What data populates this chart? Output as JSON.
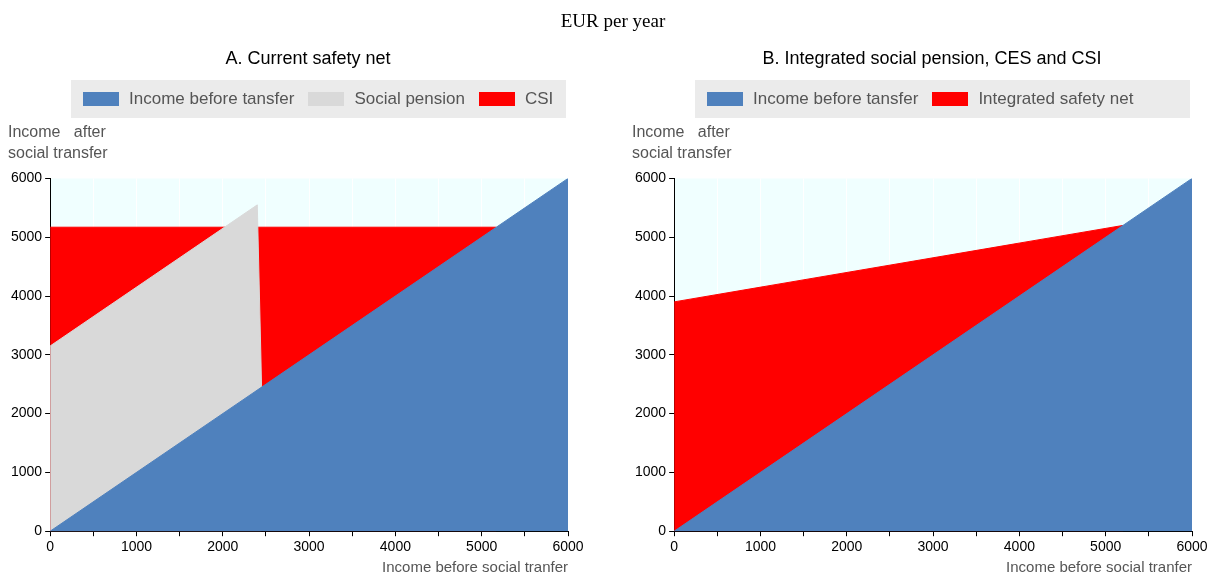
{
  "chart_data": [
    {
      "type": "area",
      "title": "A. Current safety net",
      "annotations": [
        "EUR per year"
      ],
      "ylabel": "Income   after\nsocial transfer",
      "xlabel": "Income before social tranfer",
      "legend": "top",
      "grid": "x",
      "series": [
        {
          "name": "Income before tansfer",
          "color": "#4f81bd",
          "x": [
            0,
            6000
          ],
          "values": [
            0,
            6000
          ]
        },
        {
          "name": "Social pension",
          "color": "#d9d9d9",
          "x": [
            0,
            2400,
            2450
          ],
          "values": [
            3150,
            5550,
            2450
          ]
        },
        {
          "name": "CSI",
          "color": "#ff0000",
          "x": [
            0,
            5170
          ],
          "values": [
            5170,
            5170
          ]
        }
      ],
      "xlim": [
        0,
        6000
      ],
      "xticks": [
        0,
        {
          "value": 500,
          "label": null
        },
        1000,
        {
          "value": 1500,
          "label": null
        },
        2000,
        {
          "value": 2500,
          "label": null
        },
        3000,
        {
          "value": 3500,
          "label": null
        },
        4000,
        {
          "value": 4500,
          "label": null
        },
        5000,
        {
          "value": 5500,
          "label": null
        },
        6000
      ],
      "ylim": [
        0,
        6000
      ],
      "yticks": [
        0,
        1000,
        2000,
        3000,
        4000,
        5000,
        6000
      ]
    },
    {
      "type": "area",
      "title": "B. Integrated social pension, CES and CSI",
      "ylabel": "Income   after\nsocial transfer",
      "xlabel": "Income before social tranfer",
      "legend": "top",
      "grid": "x",
      "series": [
        {
          "name": "Income before tansfer",
          "color": "#4f81bd",
          "x": [
            0,
            6000
          ],
          "values": [
            0,
            6000
          ]
        },
        {
          "name": "Integrated safety net",
          "color": "#ff0000",
          "x": [
            0,
            5200
          ],
          "values": [
            3900,
            5200
          ]
        }
      ],
      "xlim": [
        0,
        6000
      ],
      "xticks": [
        0,
        {
          "value": 500,
          "label": null
        },
        1000,
        {
          "value": 1500,
          "label": null
        },
        2000,
        {
          "value": 2500,
          "label": null
        },
        3000,
        {
          "value": 3500,
          "label": null
        },
        4000,
        {
          "value": 4500,
          "label": null
        },
        5000,
        {
          "value": 5500,
          "label": null
        },
        6000
      ],
      "ylim": [
        0,
        6000
      ],
      "yticks": [
        0,
        1000,
        2000,
        3000,
        4000,
        5000,
        6000
      ]
    }
  ]
}
